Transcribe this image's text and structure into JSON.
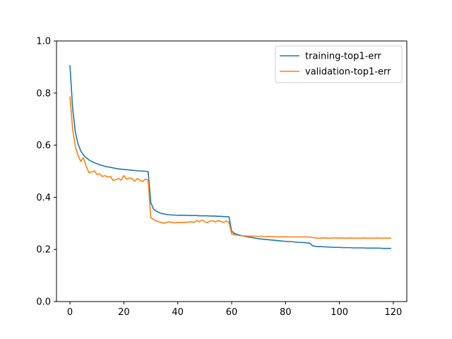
{
  "chart_data": {
    "type": "line",
    "title": "",
    "xlabel": "",
    "ylabel": "",
    "xlim": [
      -5,
      125
    ],
    "ylim": [
      0,
      1.0
    ],
    "x_ticks": [
      0,
      20,
      40,
      60,
      80,
      100,
      120
    ],
    "y_ticks": [
      0.0,
      0.2,
      0.4,
      0.6,
      0.8,
      1.0
    ],
    "x_tick_labels": [
      "0",
      "20",
      "40",
      "60",
      "80",
      "100",
      "120"
    ],
    "y_tick_labels": [
      "0.0",
      "0.2",
      "0.4",
      "0.6",
      "0.8",
      "1.0"
    ],
    "grid": false,
    "legend_position": "top-right",
    "series": [
      {
        "name": "training-top1-err",
        "color": "#1f77b4",
        "x": [
          0,
          1,
          2,
          3,
          4,
          5,
          6,
          7,
          8,
          9,
          10,
          11,
          12,
          13,
          14,
          15,
          16,
          17,
          18,
          19,
          20,
          21,
          22,
          23,
          24,
          25,
          26,
          27,
          28,
          29,
          30,
          31,
          32,
          33,
          34,
          35,
          36,
          37,
          38,
          39,
          40,
          41,
          42,
          43,
          44,
          45,
          46,
          47,
          48,
          49,
          50,
          51,
          52,
          53,
          54,
          55,
          56,
          57,
          58,
          59,
          60,
          61,
          62,
          63,
          64,
          65,
          66,
          67,
          68,
          69,
          70,
          71,
          72,
          73,
          74,
          75,
          76,
          77,
          78,
          79,
          80,
          81,
          82,
          83,
          84,
          85,
          86,
          87,
          88,
          89,
          90,
          91,
          92,
          93,
          94,
          95,
          96,
          97,
          98,
          99,
          100,
          101,
          102,
          103,
          104,
          105,
          106,
          107,
          108,
          109,
          110,
          111,
          112,
          113,
          114,
          115,
          116,
          117,
          118,
          119
        ],
        "values": [
          0.905,
          0.74,
          0.65,
          0.605,
          0.578,
          0.562,
          0.552,
          0.544,
          0.538,
          0.533,
          0.529,
          0.525,
          0.522,
          0.519,
          0.517,
          0.515,
          0.513,
          0.511,
          0.509,
          0.508,
          0.507,
          0.506,
          0.505,
          0.504,
          0.503,
          0.502,
          0.501,
          0.501,
          0.5,
          0.499,
          0.38,
          0.355,
          0.347,
          0.342,
          0.338,
          0.336,
          0.334,
          0.333,
          0.332,
          0.332,
          0.331,
          0.331,
          0.331,
          0.331,
          0.33,
          0.33,
          0.33,
          0.33,
          0.329,
          0.329,
          0.329,
          0.329,
          0.328,
          0.328,
          0.328,
          0.327,
          0.327,
          0.326,
          0.326,
          0.325,
          0.27,
          0.262,
          0.258,
          0.255,
          0.252,
          0.25,
          0.248,
          0.246,
          0.245,
          0.243,
          0.241,
          0.24,
          0.239,
          0.238,
          0.237,
          0.236,
          0.235,
          0.234,
          0.233,
          0.232,
          0.231,
          0.23,
          0.23,
          0.229,
          0.228,
          0.227,
          0.227,
          0.226,
          0.225,
          0.224,
          0.214,
          0.212,
          0.211,
          0.211,
          0.21,
          0.21,
          0.209,
          0.209,
          0.208,
          0.208,
          0.208,
          0.207,
          0.207,
          0.207,
          0.207,
          0.206,
          0.206,
          0.206,
          0.206,
          0.206,
          0.205,
          0.205,
          0.205,
          0.205,
          0.205,
          0.205,
          0.204,
          0.204,
          0.204,
          0.204
        ]
      },
      {
        "name": "validation-top1-err",
        "color": "#ff7f0e",
        "x": [
          0,
          1,
          2,
          3,
          4,
          5,
          6,
          7,
          8,
          9,
          10,
          11,
          12,
          13,
          14,
          15,
          16,
          17,
          18,
          19,
          20,
          21,
          22,
          23,
          24,
          25,
          26,
          27,
          28,
          29,
          30,
          31,
          32,
          33,
          34,
          35,
          36,
          37,
          38,
          39,
          40,
          41,
          42,
          43,
          44,
          45,
          46,
          47,
          48,
          49,
          50,
          51,
          52,
          53,
          54,
          55,
          56,
          57,
          58,
          59,
          60,
          61,
          62,
          63,
          64,
          65,
          66,
          67,
          68,
          69,
          70,
          71,
          72,
          73,
          74,
          75,
          76,
          77,
          78,
          79,
          80,
          81,
          82,
          83,
          84,
          85,
          86,
          87,
          88,
          89,
          90,
          91,
          92,
          93,
          94,
          95,
          96,
          97,
          98,
          99,
          100,
          101,
          102,
          103,
          104,
          105,
          106,
          107,
          108,
          109,
          110,
          111,
          112,
          113,
          114,
          115,
          116,
          117,
          118,
          119
        ],
        "values": [
          0.785,
          0.66,
          0.595,
          0.56,
          0.538,
          0.552,
          0.52,
          0.495,
          0.497,
          0.502,
          0.488,
          0.49,
          0.48,
          0.483,
          0.478,
          0.48,
          0.465,
          0.468,
          0.472,
          0.466,
          0.483,
          0.47,
          0.474,
          0.472,
          0.462,
          0.472,
          0.465,
          0.461,
          0.47,
          0.466,
          0.322,
          0.315,
          0.31,
          0.306,
          0.303,
          0.301,
          0.304,
          0.306,
          0.303,
          0.302,
          0.304,
          0.303,
          0.304,
          0.304,
          0.305,
          0.306,
          0.304,
          0.311,
          0.306,
          0.313,
          0.306,
          0.303,
          0.309,
          0.31,
          0.305,
          0.311,
          0.307,
          0.304,
          0.309,
          0.304,
          0.26,
          0.257,
          0.255,
          0.253,
          0.252,
          0.252,
          0.251,
          0.251,
          0.251,
          0.251,
          0.25,
          0.251,
          0.25,
          0.249,
          0.25,
          0.249,
          0.249,
          0.248,
          0.249,
          0.248,
          0.249,
          0.248,
          0.248,
          0.248,
          0.248,
          0.248,
          0.248,
          0.248,
          0.248,
          0.248,
          0.246,
          0.244,
          0.243,
          0.243,
          0.244,
          0.244,
          0.243,
          0.243,
          0.244,
          0.244,
          0.243,
          0.244,
          0.243,
          0.243,
          0.244,
          0.243,
          0.243,
          0.243,
          0.243,
          0.244,
          0.243,
          0.243,
          0.243,
          0.243,
          0.244,
          0.243,
          0.243,
          0.244,
          0.243,
          0.243
        ]
      }
    ]
  }
}
